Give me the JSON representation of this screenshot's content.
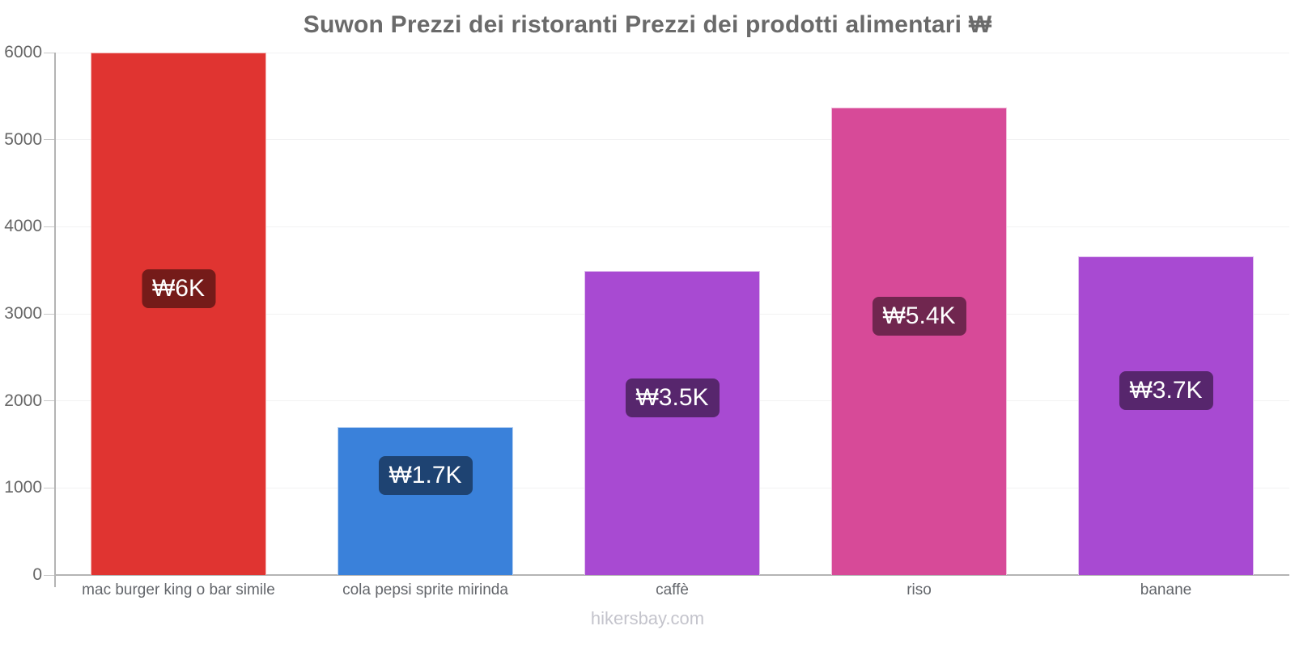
{
  "title": "Suwon Prezzi dei ristoranti Prezzi dei prodotti alimentari ₩",
  "watermark": "hikersbay.com",
  "colors": {
    "title_text": "#6a6a6a",
    "axis_line": "#b4b4b4",
    "gridline": "#f2f2f3",
    "ytick_text": "#666666",
    "category_text": "#63666b",
    "watermark_text": "#c4c4cc",
    "value_label_text": "#ffffff",
    "value_label_overlay": "rgba(0,0,0,0.48)"
  },
  "chart_data": {
    "type": "bar",
    "title": "Suwon Prezzi dei ristoranti Prezzi dei prodotti alimentari ₩",
    "categories": [
      "mac burger king o bar simile",
      "cola pepsi sprite mirinda",
      "caffè",
      "riso",
      "banane"
    ],
    "values": [
      6000,
      1700,
      3490,
      5370,
      3660
    ],
    "value_labels": [
      "₩6K",
      "₩1.7K",
      "₩3.5K",
      "₩5.4K",
      "₩3.7K"
    ],
    "bar_colors": [
      "#e03431",
      "#3a81da",
      "#a84ad2",
      "#d74a98",
      "#a84ad2"
    ],
    "currency": "₩",
    "xlabel": "",
    "ylabel": "",
    "ylim": [
      0,
      6000
    ],
    "yticks": [
      0,
      1000,
      2000,
      3000,
      4000,
      5000,
      6000
    ],
    "grid": "horizontal-faint",
    "legend": "none"
  }
}
